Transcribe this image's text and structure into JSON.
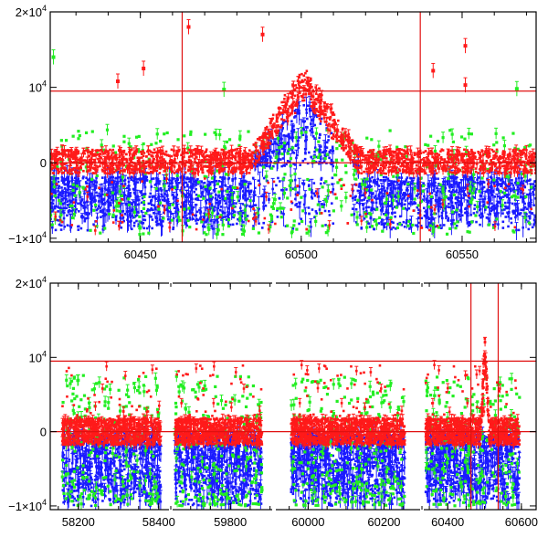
{
  "colors": {
    "red": "#ff1a1a",
    "green": "#22ee22",
    "blue": "#1a1aff",
    "frame": "#000000",
    "reference": "#e01010"
  },
  "chart_data": [
    {
      "type": "scatter",
      "panel": "top",
      "title": "",
      "xlabel": "",
      "ylabel": "",
      "xlim": [
        60422,
        60573
      ],
      "ylim": [
        -10500,
        20000
      ],
      "grid": false,
      "x_ticks": [
        {
          "value": 60450,
          "label": "60450"
        },
        {
          "value": 60500,
          "label": "60500"
        },
        {
          "value": 60550,
          "label": "60550"
        }
      ],
      "y_ticks": [
        {
          "value": 20000,
          "label": "2×10",
          "sup": "4"
        },
        {
          "value": 10000,
          "label": "10",
          "sup": "4"
        },
        {
          "value": 0,
          "label": "0",
          "sup": ""
        },
        {
          "value": -10000,
          "label": "−1×10",
          "sup": "4"
        }
      ],
      "reference_lines": {
        "vertical": [
          60463,
          60537
        ],
        "horizontal": [
          9500,
          0
        ]
      },
      "feature": {
        "peak_x": 60501,
        "peak_y": 11000,
        "half_width": 17
      },
      "highlight_points": [
        {
          "series": "red",
          "x": 60465,
          "y": 18000
        },
        {
          "series": "red",
          "x": 60488,
          "y": 17000
        },
        {
          "series": "red",
          "x": 60451,
          "y": 12500
        },
        {
          "series": "red",
          "x": 60541,
          "y": 12200
        },
        {
          "series": "red",
          "x": 60551,
          "y": 15500
        },
        {
          "series": "red",
          "x": 60551,
          "y": 10300
        },
        {
          "series": "green",
          "x": 60423,
          "y": 14000
        },
        {
          "series": "green",
          "x": 60567,
          "y": 9800
        },
        {
          "series": "green",
          "x": 60476,
          "y": 9700
        },
        {
          "series": "red",
          "x": 60443,
          "y": 10800
        }
      ],
      "series": [
        {
          "color": "blue",
          "scatter_y": [
            -9000,
            4000
          ],
          "density": 0.8
        },
        {
          "color": "green",
          "scatter_y": [
            -9500,
            9000
          ],
          "density": 0.3
        },
        {
          "color": "red",
          "scatter_y": [
            -3000,
            2500
          ],
          "density": 0.95
        }
      ]
    },
    {
      "type": "scatter",
      "panel": "bottom",
      "title": "",
      "xlabel": "",
      "ylabel": "",
      "ylim": [
        -10500,
        20000
      ],
      "grid": false,
      "segments": [
        {
          "xlim": [
            58130,
            58430
          ],
          "data_x": [
            58160,
            58405
          ],
          "x_ticks": [
            {
              "value": 58200,
              "label": "58200"
            },
            {
              "value": 58400,
              "label": "58400"
            }
          ]
        },
        {
          "xlim": [
            59650,
            59910
          ],
          "data_x": [
            59660,
            59880
          ],
          "x_ticks": [
            {
              "value": 59800,
              "label": "59800"
            }
          ]
        },
        {
          "xlim": [
            59910,
            60300
          ],
          "data_x": [
            59955,
            60255
          ],
          "x_ticks": [
            {
              "value": 60000,
              "label": "60000"
            },
            {
              "value": 60200,
              "label": "60200"
            }
          ]
        },
        {
          "xlim": [
            60330,
            60640
          ],
          "data_x": [
            60340,
            60595
          ],
          "x_ticks": [
            {
              "value": 60400,
              "label": "60400"
            },
            {
              "value": 60600,
              "label": "60600"
            }
          ]
        }
      ],
      "y_ticks": [
        {
          "value": 20000,
          "label": "2×10",
          "sup": "4"
        },
        {
          "value": 10000,
          "label": "10",
          "sup": "4"
        },
        {
          "value": 0,
          "label": "0",
          "sup": ""
        },
        {
          "value": -10000,
          "label": "−1×10",
          "sup": "4"
        }
      ],
      "reference_lines": {
        "vertical": [
          60463,
          60537
        ],
        "horizontal": [
          9500,
          0
        ]
      },
      "feature": {
        "peak_x": 60501,
        "peak_y": 11500,
        "half_width": 12
      },
      "series": [
        {
          "color": "blue",
          "scatter_y": [
            -10000,
            6000
          ],
          "density": 0.8
        },
        {
          "color": "green",
          "scatter_y": [
            -10000,
            12000
          ],
          "density": 0.3
        },
        {
          "color": "red",
          "scatter_y": [
            -3000,
            3000
          ],
          "density": 0.95
        }
      ]
    }
  ]
}
